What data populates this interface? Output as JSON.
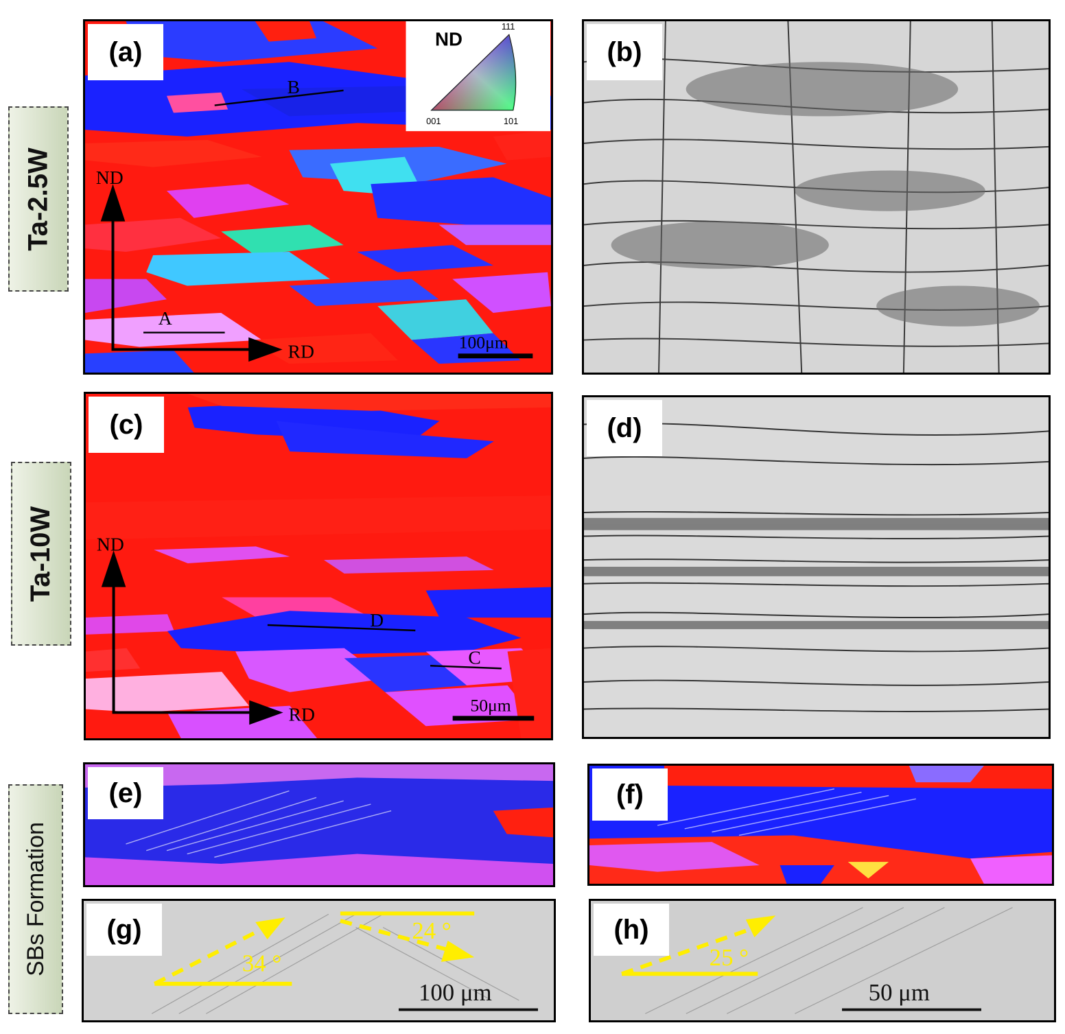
{
  "rows": {
    "row1": "Ta-2.5W",
    "row2": "Ta-10W",
    "row3": "SBs Formation"
  },
  "panels": {
    "a": "(a)",
    "b": "(b)",
    "c": "(c)",
    "d": "(d)",
    "e": "(e)",
    "f": "(f)",
    "g": "(g)",
    "h": "(h)"
  },
  "legend": {
    "title": "ND",
    "v111": "111",
    "v001": "001",
    "v101": "101"
  },
  "axes": {
    "nd": "ND",
    "rd": "RD"
  },
  "markers": {
    "a": "A",
    "b": "B",
    "c": "C",
    "d": "D"
  },
  "scalebars": {
    "a": "100μm",
    "c": "50μm",
    "g": "100 μm",
    "h": "50 μm"
  },
  "angles": {
    "g1": "34 °",
    "g2": "24 °",
    "h1": "25 °"
  },
  "colors": {
    "ipf_red": "#ff1a10",
    "ipf_blue": "#1a22ff",
    "ipf_magenta": "#d040f0",
    "annotation_yellow": "#ffee00"
  }
}
